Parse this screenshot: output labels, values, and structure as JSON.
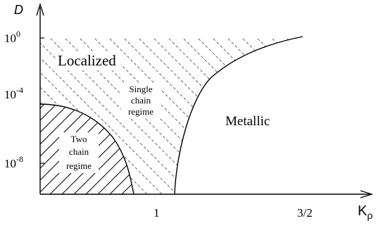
{
  "axes": {
    "y_label": "D",
    "x_label_base": "K",
    "x_label_subscript": "ρ",
    "y_tick_labels": [
      {
        "base": "10",
        "exp": "0"
      },
      {
        "base": "10",
        "exp": "-4"
      },
      {
        "base": "10",
        "exp": "-8"
      }
    ],
    "x_tick_labels": [
      "1",
      "3/2"
    ]
  },
  "regions": {
    "localized": "Localized",
    "single_chain": [
      "Single",
      "chain",
      "regime"
    ],
    "two_chain": [
      "Two",
      "chain",
      "regime"
    ],
    "metallic": "Metallic"
  },
  "colors": {
    "ink": "#000000",
    "hatch_sparse": "#555555",
    "background": "#ffffff"
  }
}
